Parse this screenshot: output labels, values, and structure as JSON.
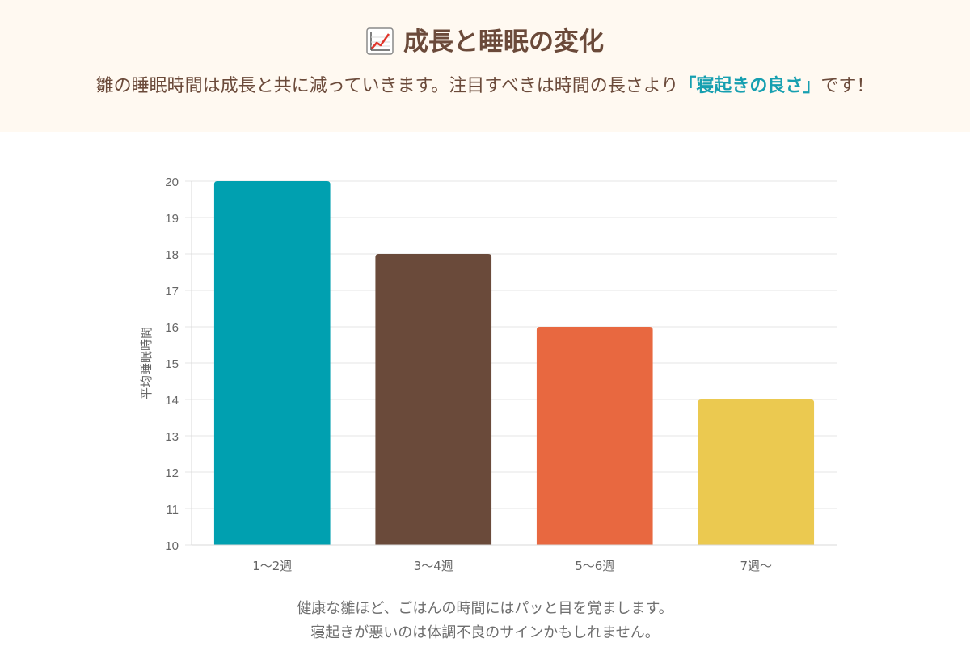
{
  "header": {
    "title": "成長と睡眠の変化",
    "title_icon": "chart-increasing-icon",
    "subtitle_before": "雛の睡眠時間は成長と共に減っていきます。注目すべきは時間の長さより",
    "subtitle_highlight": "「寝起きの良さ」",
    "subtitle_after": "です！"
  },
  "chart_data": {
    "type": "bar",
    "categories": [
      "1〜2週",
      "3〜4週",
      "5〜6週",
      "7週〜"
    ],
    "values": [
      20,
      18,
      16,
      14
    ],
    "colors": [
      "#00a0b0",
      "#6a4a3a",
      "#e86840",
      "#ebc950"
    ],
    "ylabel": "平均睡眠時間",
    "xlabel": "",
    "ylim": [
      10,
      20
    ],
    "yticks": [
      10,
      11,
      12,
      13,
      14,
      15,
      16,
      17,
      18,
      19,
      20
    ],
    "grid": true
  },
  "caption": {
    "line1": "健康な雛ほど、ごはんの時間にはパッと目を覚まします。",
    "line2": "寝起きが悪いのは体調不良のサインかもしれません。"
  }
}
